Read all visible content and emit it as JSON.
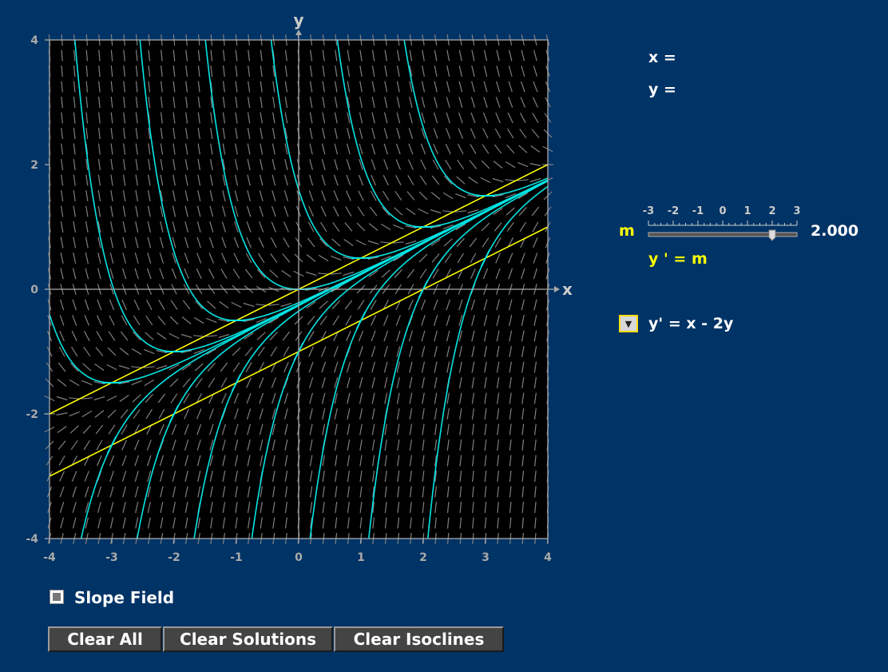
{
  "graph": {
    "xlabel": "x",
    "ylabel": "y",
    "x_ticks": [
      "-4",
      "-3",
      "-2",
      "-1",
      "0",
      "1",
      "2",
      "3",
      "4"
    ],
    "y_ticks": [
      "4",
      "2",
      "0",
      "-2",
      "-4"
    ]
  },
  "readout": {
    "x_label": "x =",
    "y_label": "y ="
  },
  "slider": {
    "label": "m",
    "value": 2.0,
    "value_text": "2.000",
    "min": -3,
    "max": 3,
    "tick_labels": [
      "-3",
      "-2",
      "-1",
      "0",
      "1",
      "2",
      "3"
    ]
  },
  "isocline_equation": "y ' = m",
  "equation": "y' = x - 2y",
  "slope_field_label": "Slope Field",
  "buttons": {
    "clear_all": "Clear All",
    "clear_solutions": "Clear Solutions",
    "clear_isoclines": "Clear Isoclines"
  },
  "colors": {
    "background": "#003366",
    "plot_bg": "#000000",
    "solution": "#00e5e5",
    "isocline": "#ffff00",
    "slope": "#808080"
  },
  "chart_data": {
    "type": "line",
    "xlim": [
      -4,
      4
    ],
    "ylim": [
      -4,
      4
    ],
    "ode": "y' = x - 2y",
    "solutions_initial_points": [
      [
        -3,
        -1.5
      ],
      [
        -2,
        -1
      ],
      [
        -1,
        -0.5
      ],
      [
        0,
        0
      ],
      [
        1,
        0.5
      ],
      [
        2,
        1
      ],
      [
        3,
        1.5
      ],
      [
        -3,
        -2.5
      ],
      [
        -2,
        -2
      ],
      [
        -1,
        -1.5
      ],
      [
        0,
        -1
      ],
      [
        1,
        -0.5
      ],
      [
        2,
        0
      ],
      [
        3,
        0.5
      ]
    ],
    "isoclines": [
      {
        "m": 0,
        "slope": 0.5,
        "intercept": 0
      },
      {
        "m": 2,
        "slope": 0.5,
        "intercept": -1
      }
    ],
    "grid": false
  }
}
